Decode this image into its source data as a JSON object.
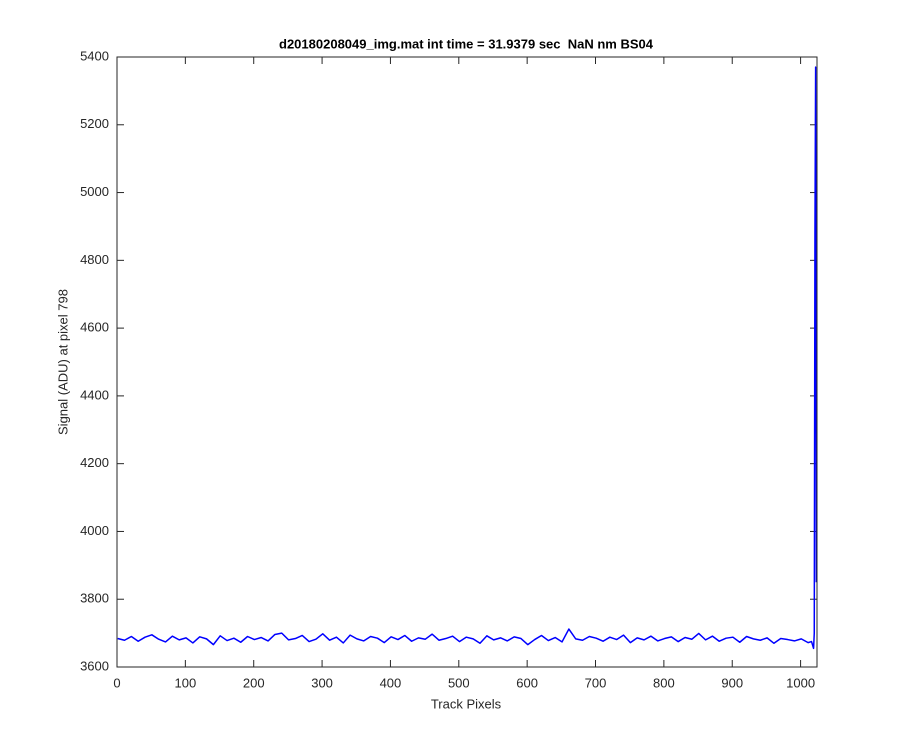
{
  "chart_data": {
    "type": "line",
    "title": "d20180208049_img.mat int time = 31.9379 sec  NaN nm BS04",
    "xlabel": "Track Pixels",
    "ylabel": "Signal (ADU) at pixel 798",
    "x": [
      1,
      11,
      21,
      31,
      41,
      51,
      61,
      71,
      81,
      91,
      101,
      111,
      121,
      131,
      141,
      151,
      161,
      171,
      181,
      191,
      201,
      211,
      221,
      231,
      241,
      251,
      261,
      271,
      281,
      291,
      301,
      311,
      321,
      331,
      341,
      351,
      361,
      371,
      381,
      391,
      401,
      411,
      421,
      431,
      441,
      451,
      461,
      471,
      481,
      491,
      501,
      511,
      521,
      531,
      541,
      551,
      561,
      571,
      581,
      591,
      601,
      611,
      621,
      631,
      641,
      651,
      661,
      671,
      681,
      691,
      701,
      711,
      721,
      731,
      741,
      751,
      761,
      771,
      781,
      791,
      801,
      811,
      821,
      831,
      841,
      851,
      861,
      871,
      881,
      891,
      901,
      911,
      921,
      931,
      941,
      951,
      961,
      971,
      981,
      991,
      1001,
      1011,
      1016,
      1019,
      1020,
      1021,
      1022,
      1023
    ],
    "values": [
      3684,
      3679,
      3690,
      3676,
      3688,
      3695,
      3682,
      3674,
      3691,
      3680,
      3686,
      3671,
      3689,
      3683,
      3666,
      3692,
      3678,
      3685,
      3673,
      3690,
      3681,
      3687,
      3677,
      3696,
      3700,
      3680,
      3684,
      3693,
      3675,
      3682,
      3698,
      3679,
      3688,
      3671,
      3694,
      3683,
      3677,
      3690,
      3685,
      3672,
      3689,
      3681,
      3693,
      3676,
      3686,
      3682,
      3697,
      3679,
      3684,
      3691,
      3675,
      3688,
      3683,
      3670,
      3692,
      3680,
      3686,
      3677,
      3689,
      3684,
      3666,
      3681,
      3693,
      3678,
      3687,
      3674,
      3712,
      3683,
      3679,
      3690,
      3685,
      3676,
      3688,
      3681,
      3694,
      3672,
      3686,
      3680,
      3691,
      3677,
      3684,
      3689,
      3675,
      3687,
      3682,
      3699,
      3680,
      3691,
      3676,
      3685,
      3688,
      3673,
      3690,
      3683,
      3679,
      3686,
      3670,
      3684,
      3681,
      3677,
      3683,
      3672,
      3675,
      3655,
      3700,
      4880,
      5370,
      3850
    ],
    "color": "#0000ff",
    "xlim": [
      0,
      1024
    ],
    "xticks": [
      0,
      100,
      200,
      300,
      400,
      500,
      600,
      700,
      800,
      900,
      1000
    ],
    "ylim": [
      3600,
      5400
    ],
    "yticks": [
      3600,
      3800,
      4000,
      4200,
      4400,
      4600,
      4800,
      5000,
      5200,
      5400
    ]
  }
}
